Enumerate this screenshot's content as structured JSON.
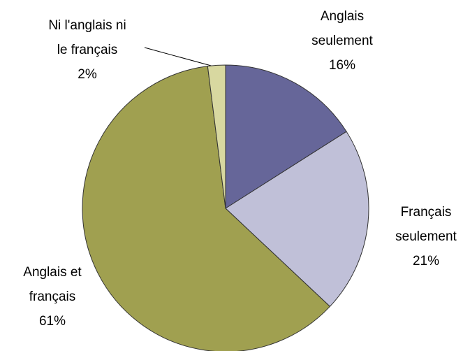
{
  "chart_data": {
    "type": "pie",
    "categories": [
      [
        "Anglais",
        "seulement"
      ],
      [
        "Français",
        "seulement"
      ],
      [
        "Anglais et",
        "français"
      ],
      [
        "Ni l'anglais ni",
        "le français"
      ]
    ],
    "values": [
      16,
      21,
      61,
      2
    ],
    "value_labels": [
      "16%",
      "21%",
      "61%",
      "2%"
    ],
    "colors": [
      "#666699",
      "#c0c0d8",
      "#a0a050",
      "#d8d8a0"
    ]
  }
}
